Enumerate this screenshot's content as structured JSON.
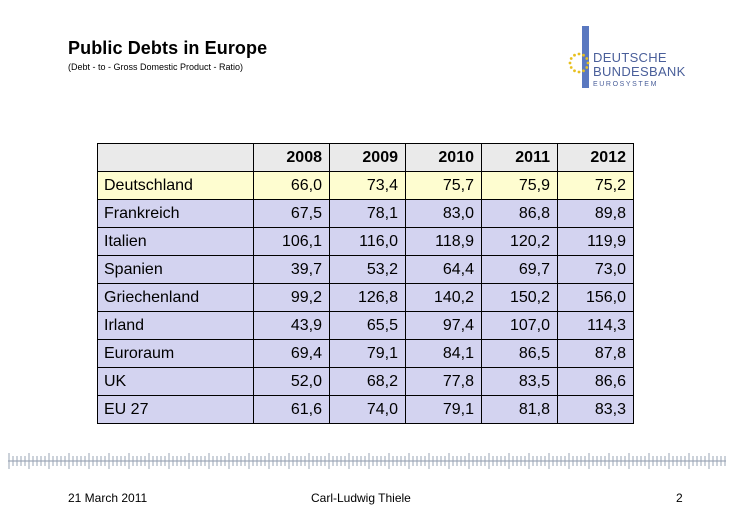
{
  "slide": {
    "title": "Public Debts in Europe",
    "subtitle": "(Debt - to - Gross Domestic Product - Ratio)"
  },
  "logo": {
    "line1": "DEUTSCHE",
    "line2": "BUNDESBANK",
    "line3": "EUROSYSTEM",
    "color": "#4a5f9a"
  },
  "table": {
    "headers": [
      "",
      "2008",
      "2009",
      "2010",
      "2011",
      "2012"
    ],
    "rows": [
      {
        "country": "Deutschland",
        "values": [
          "66,0",
          "73,4",
          "75,7",
          "75,9",
          "75,2"
        ]
      },
      {
        "country": "Frankreich",
        "values": [
          "67,5",
          "78,1",
          "83,0",
          "86,8",
          "89,8"
        ]
      },
      {
        "country": "Italien",
        "values": [
          "106,1",
          "116,0",
          "118,9",
          "120,2",
          "119,9"
        ]
      },
      {
        "country": "Spanien",
        "values": [
          "39,7",
          "53,2",
          "64,4",
          "69,7",
          "73,0"
        ]
      },
      {
        "country": "Griechenland",
        "values": [
          "99,2",
          "126,8",
          "140,2",
          "150,2",
          "156,0"
        ]
      },
      {
        "country": "Irland",
        "values": [
          "43,9",
          "65,5",
          "97,4",
          "107,0",
          "114,3"
        ]
      },
      {
        "country": "Euroraum",
        "values": [
          "69,4",
          "79,1",
          "84,1",
          "86,5",
          "87,8"
        ]
      },
      {
        "country": "UK",
        "values": [
          "52,0",
          "68,2",
          "77,8",
          "83,5",
          "86,6"
        ]
      },
      {
        "country": "EU 27",
        "values": [
          "61,6",
          "74,0",
          "79,1",
          "81,8",
          "83,3"
        ]
      }
    ],
    "colors": {
      "highlight": "#fefdd0",
      "rows": "#d3d3f0",
      "header": "#eaeaea"
    }
  },
  "footer": {
    "date": "21 March 2011",
    "author": "Carl-Ludwig Thiele",
    "page": "2"
  }
}
